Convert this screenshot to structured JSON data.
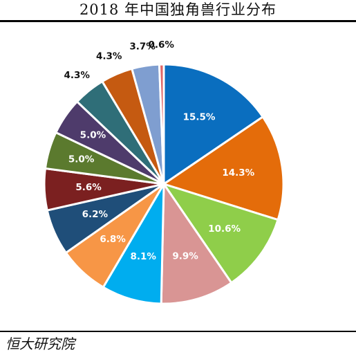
{
  "title": "2018 年中国独角兽行业分布",
  "source": "恒大研究院",
  "chart_data": {
    "type": "pie",
    "title": "2018 年中国独角兽行业分布",
    "start_angle": "12 o'clock",
    "direction": "clockwise",
    "values": [
      15.5,
      14.3,
      10.6,
      9.9,
      8.1,
      6.8,
      6.2,
      5.6,
      5.0,
      5.0,
      4.3,
      4.3,
      3.7,
      0.6
    ],
    "labels": [
      "15.5%",
      "14.3%",
      "10.6%",
      "9.9%",
      "8.1%",
      "6.8%",
      "6.2%",
      "5.6%",
      "5.0%",
      "5.0%",
      "4.3%",
      "4.3%",
      "3.7%",
      "0.6%"
    ],
    "colors": [
      "#0a6ebf",
      "#e46c0a",
      "#8fce4a",
      "#d99594",
      "#00adef",
      "#f79646",
      "#1f4e79",
      "#7b2020",
      "#5b7a2e",
      "#4e3b6b",
      "#2f6e78",
      "#c55a11",
      "#7f9ed0",
      "#e06666"
    ],
    "label_colors": [
      "#ffffff",
      "#ffffff",
      "#ffffff",
      "#ffffff",
      "#ffffff",
      "#ffffff",
      "#ffffff",
      "#ffffff",
      "#ffffff",
      "#ffffff",
      "#111111",
      "#111111",
      "#111111",
      "#111111"
    ],
    "label_placement": [
      "inside",
      "inside",
      "inside",
      "inside",
      "inside",
      "inside",
      "inside",
      "inside",
      "inside",
      "inside",
      "outside",
      "outside",
      "outside",
      "outside"
    ]
  }
}
